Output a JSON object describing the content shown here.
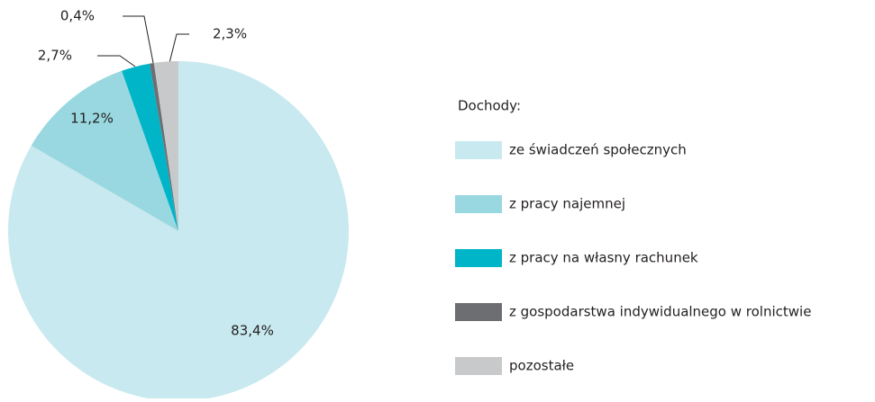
{
  "chart_data": {
    "type": "pie",
    "legend_title": "Dochody:",
    "categories": [
      "ze świadczeń społecznych",
      "z pracy najemnej",
      "z pracy na własny rachunek",
      "z gospodarstwa indywidualnego w rolnictwie",
      "pozostałe"
    ],
    "values": [
      83.4,
      11.2,
      2.7,
      0.4,
      2.3
    ],
    "value_labels": [
      "83,4%",
      "11,2%",
      "2,7%",
      "0,4%",
      "2,3%"
    ],
    "colors": [
      "#c8e9ef",
      "#99d8e0",
      "#00b5c8",
      "#6d6e71",
      "#c8c9cb"
    ]
  }
}
